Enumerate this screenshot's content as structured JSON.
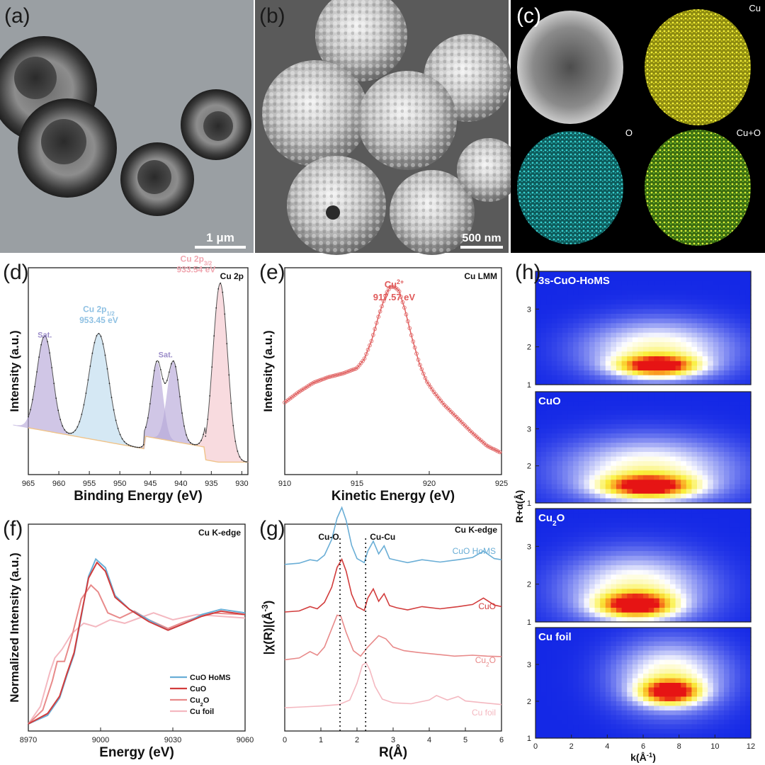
{
  "panels": {
    "a": {
      "label": "(a)",
      "scalebar": "1 μm"
    },
    "b": {
      "label": "(b)",
      "scalebar": "500 nm"
    },
    "c": {
      "label": "(c)",
      "maps": [
        "Cu",
        "O",
        "Cu+O"
      ]
    },
    "d": {
      "label": "(d)"
    },
    "e": {
      "label": "(e)"
    },
    "f": {
      "label": "(f)"
    },
    "g": {
      "label": "(g)"
    },
    "h": {
      "label": "(h)"
    }
  },
  "colors": {
    "CuO HoMS": "#6aaed6",
    "CuO": "#d23c3c",
    "Cu2O": "#e88a8a",
    "Cu foil": "#f4b8c0",
    "xps_fit": "#333333",
    "sat": "#b7a9d9",
    "p12": "#bfdcef",
    "p32": "#f5c9cf",
    "lmm": "#e06060"
  },
  "chart_data": [
    {
      "id": "d",
      "type": "line",
      "corner_label": "Cu 2p",
      "xlabel": "Binding Energy (eV)",
      "ylabel": "Intensity (a.u.)",
      "xlim": [
        965,
        929
      ],
      "xticks": [
        965,
        960,
        955,
        950,
        945,
        940,
        935,
        930
      ],
      "annotations": [
        {
          "text": "Sat.",
          "x": 962.3
        },
        {
          "text": "Cu 2p1/2",
          "x": 953.45
        },
        {
          "text": "953.45 eV",
          "x": 953.45
        },
        {
          "text": "Sat.",
          "x": 942.5
        },
        {
          "text": "Cu 2p3/2",
          "x": 933.54
        },
        {
          "text": "933.54 eV",
          "x": 933.54
        }
      ],
      "peaks": [
        {
          "name": "Sat.",
          "center": 962.3,
          "height": 0.56,
          "width": 1.3
        },
        {
          "name": "Cu 2p1/2",
          "center": 953.45,
          "height": 0.62,
          "width": 1.6
        },
        {
          "name": "Sat.",
          "center": 943.9,
          "height": 0.44,
          "width": 0.9
        },
        {
          "name": "Sat.",
          "center": 941.2,
          "height": 0.46,
          "width": 1.0
        },
        {
          "name": "Cu 2p3/2",
          "center": 933.54,
          "height": 1.0,
          "width": 1.2
        }
      ]
    },
    {
      "id": "e",
      "type": "line",
      "corner_label": "Cu LMM",
      "xlabel": "Kinetic Energy (eV)",
      "ylabel": "Intensity (a.u.)",
      "xlim": [
        910,
        925
      ],
      "xticks": [
        910,
        915,
        920,
        925
      ],
      "annotation_lines": [
        "Cu2+",
        "917.57 eV"
      ],
      "annotation_x": 917.57,
      "x": [
        910,
        911,
        912,
        913,
        914,
        915,
        915.5,
        916,
        916.5,
        917,
        917.3,
        917.57,
        917.9,
        918.3,
        918.8,
        919.3,
        919.8,
        920.3,
        921,
        922,
        923,
        924,
        925
      ],
      "y": [
        0.36,
        0.42,
        0.47,
        0.5,
        0.52,
        0.55,
        0.6,
        0.7,
        0.84,
        0.96,
        1.0,
        1.0,
        0.98,
        0.88,
        0.72,
        0.58,
        0.48,
        0.42,
        0.35,
        0.27,
        0.19,
        0.12,
        0.08
      ]
    },
    {
      "id": "f",
      "type": "line",
      "corner_label": "Cu K-edge",
      "xlabel": "Energy (eV)",
      "ylabel": "Normalized Intensity (a.u.)",
      "xlim": [
        8970,
        9060
      ],
      "xticks": [
        8970,
        9000,
        9030,
        9060
      ],
      "legend": "bottom-right",
      "series": [
        {
          "name": "CuO HoMS",
          "x": [
            8970,
            8978,
            8983,
            8986,
            8989,
            8992,
            8995,
            8998,
            9002,
            9006,
            9012,
            9020,
            9028,
            9035,
            9042,
            9050,
            9060
          ],
          "y": [
            0.0,
            0.05,
            0.15,
            0.28,
            0.4,
            0.62,
            0.85,
            0.95,
            0.9,
            0.74,
            0.66,
            0.6,
            0.54,
            0.58,
            0.63,
            0.66,
            0.64
          ]
        },
        {
          "name": "CuO",
          "x": [
            8970,
            8978,
            8983,
            8986,
            8989,
            8992,
            8995,
            8998.5,
            9002,
            9006,
            9012,
            9020,
            9028,
            9035,
            9042,
            9050,
            9060
          ],
          "y": [
            0.0,
            0.06,
            0.16,
            0.29,
            0.41,
            0.63,
            0.84,
            0.93,
            0.88,
            0.73,
            0.66,
            0.59,
            0.54,
            0.58,
            0.62,
            0.65,
            0.63
          ]
        },
        {
          "name": "Cu2O",
          "x": [
            8970,
            8976,
            8980,
            8982,
            8985,
            8988,
            8992,
            8996,
            8999,
            9003,
            9008,
            9014,
            9020,
            9028,
            9035,
            9045,
            9060
          ],
          "y": [
            0.0,
            0.08,
            0.25,
            0.36,
            0.36,
            0.5,
            0.72,
            0.8,
            0.76,
            0.64,
            0.61,
            0.65,
            0.6,
            0.55,
            0.59,
            0.64,
            0.63
          ]
        },
        {
          "name": "Cu foil",
          "x": [
            8970,
            8975,
            8979,
            8981,
            8984,
            8988,
            8993,
            8998,
            9004,
            9010,
            9016,
            9022,
            9030,
            9040,
            9050,
            9060
          ],
          "y": [
            0.0,
            0.1,
            0.3,
            0.38,
            0.43,
            0.52,
            0.58,
            0.56,
            0.6,
            0.58,
            0.61,
            0.64,
            0.6,
            0.63,
            0.62,
            0.61
          ]
        }
      ]
    },
    {
      "id": "g",
      "type": "line",
      "corner_label": "Cu K-edge",
      "xlabel": "R(Å)",
      "ylabel": "|χ(R)|(Å-3)",
      "xlim": [
        0,
        6
      ],
      "xticks": [
        0,
        1,
        2,
        3,
        4,
        5,
        6
      ],
      "vlines": [
        {
          "label": "Cu-O",
          "x": 1.53
        },
        {
          "label": "Cu-Cu",
          "x": 2.24
        }
      ],
      "series": [
        {
          "name": "CuO HoMS",
          "x": [
            0,
            0.4,
            0.7,
            0.9,
            1.1,
            1.3,
            1.45,
            1.58,
            1.7,
            1.85,
            2.0,
            2.2,
            2.3,
            2.45,
            2.6,
            2.75,
            2.9,
            3.1,
            3.4,
            3.8,
            4.3,
            4.8,
            5.2,
            5.5,
            5.8,
            6.0
          ],
          "y": [
            0.02,
            0.04,
            0.1,
            0.08,
            0.18,
            0.45,
            0.82,
            1.0,
            0.78,
            0.35,
            0.12,
            0.05,
            0.25,
            0.42,
            0.2,
            0.34,
            0.12,
            0.09,
            0.05,
            0.1,
            0.06,
            0.1,
            0.14,
            0.25,
            0.12,
            0.1
          ]
        },
        {
          "name": "CuO",
          "x": [
            0,
            0.4,
            0.7,
            0.9,
            1.1,
            1.3,
            1.45,
            1.58,
            1.7,
            1.85,
            2.0,
            2.2,
            2.3,
            2.45,
            2.6,
            2.75,
            2.9,
            3.1,
            3.4,
            3.8,
            4.3,
            4.8,
            5.2,
            5.5,
            5.8,
            6.0
          ],
          "y": [
            0.02,
            0.04,
            0.12,
            0.08,
            0.2,
            0.48,
            0.85,
            1.0,
            0.78,
            0.35,
            0.12,
            0.05,
            0.28,
            0.45,
            0.22,
            0.36,
            0.14,
            0.1,
            0.06,
            0.12,
            0.08,
            0.12,
            0.16,
            0.28,
            0.15,
            0.12
          ]
        },
        {
          "name": "Cu2O",
          "x": [
            0,
            0.4,
            0.7,
            0.9,
            1.1,
            1.3,
            1.45,
            1.55,
            1.7,
            1.9,
            2.1,
            2.3,
            2.6,
            2.8,
            3.0,
            3.3,
            3.7,
            4.2,
            4.7,
            5.2,
            5.6,
            6.0
          ],
          "y": [
            0.02,
            0.06,
            0.2,
            0.12,
            0.3,
            0.7,
            1.0,
            0.98,
            0.62,
            0.22,
            0.1,
            0.3,
            0.55,
            0.48,
            0.3,
            0.22,
            0.18,
            0.14,
            0.1,
            0.12,
            0.1,
            0.09
          ]
        },
        {
          "name": "Cu foil",
          "x": [
            0,
            0.5,
            1.0,
            1.5,
            1.8,
            2.0,
            2.15,
            2.25,
            2.35,
            2.5,
            2.7,
            3.0,
            3.5,
            4.0,
            4.2,
            4.5,
            4.8,
            5.0,
            5.5,
            6.0
          ],
          "y": [
            0.01,
            0.03,
            0.05,
            0.08,
            0.18,
            0.55,
            0.95,
            1.0,
            0.85,
            0.48,
            0.2,
            0.12,
            0.1,
            0.18,
            0.28,
            0.18,
            0.26,
            0.16,
            0.12,
            0.08
          ]
        }
      ]
    },
    {
      "id": "h",
      "type": "heatmap",
      "xlabel": "k(Å-1)",
      "ylabel": "R+α(Å)",
      "xlim": [
        0,
        12
      ],
      "xticks": [
        0,
        2,
        4,
        6,
        8,
        10,
        12
      ],
      "ylim": [
        1,
        4
      ],
      "yticks": [
        1,
        2,
        3
      ],
      "maps": [
        {
          "name": "3s-CuO-HoMS",
          "k_center": 6.8,
          "r_center": 1.5,
          "k_spread": 2.0,
          "r_spread": 0.25
        },
        {
          "name": "CuO",
          "k_center": 6.3,
          "r_center": 1.45,
          "k_spread": 2.3,
          "r_spread": 0.28
        },
        {
          "name": "Cu2O",
          "k_center": 5.6,
          "r_center": 1.45,
          "k_spread": 1.9,
          "r_spread": 0.3
        },
        {
          "name": "Cu foil",
          "k_center": 7.5,
          "r_center": 2.25,
          "k_spread": 1.5,
          "r_spread": 0.3
        }
      ]
    }
  ]
}
